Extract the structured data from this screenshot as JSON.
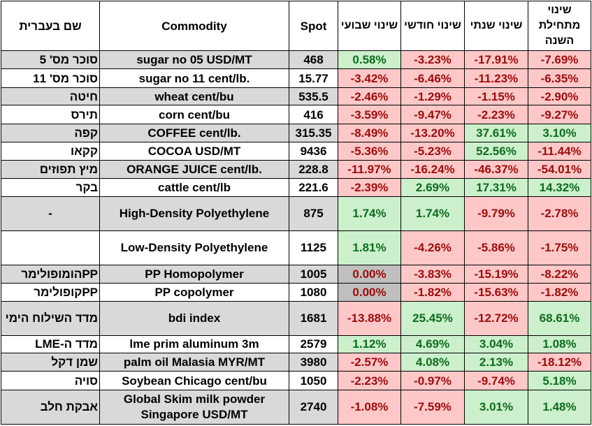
{
  "headers": {
    "hebrew_name": "שם בעברית",
    "commodity": "Commodity",
    "spot": "Spot",
    "weekly": "שינוי שבועי",
    "monthly": "שינוי חודשי",
    "yearly": "שינוי שנתי",
    "ytd": "שינוי מתחילת השנה"
  },
  "colors": {
    "positive_bg": "#ccf0cc",
    "positive_text": "#0d6b1f",
    "negative_bg": "#ffc8c8",
    "negative_text": "#9c0b0b",
    "neutral_bg": "#bfbfbf",
    "row_shade": "#d9d9d9"
  },
  "rows": [
    {
      "heb": "סוכר מס' 5",
      "name": "sugar no 05 USD/MT",
      "spot": "468",
      "weekly": "0.58%",
      "monthly": "-3.23%",
      "yearly": "-17.91%",
      "ytd": "-7.69%"
    },
    {
      "heb": "סוכר מס' 11",
      "name": "sugar no 11 cent/lb.",
      "spot": "15.77",
      "weekly": "-3.42%",
      "monthly": "-6.46%",
      "yearly": "-11.23%",
      "ytd": "-6.35%"
    },
    {
      "heb": "חיטה",
      "name": "wheat cent/bu",
      "spot": "535.5",
      "weekly": "-2.46%",
      "monthly": "-1.29%",
      "yearly": "-1.15%",
      "ytd": "-2.90%"
    },
    {
      "heb": "תירס",
      "name": "corn cent/bu",
      "spot": "416",
      "weekly": "-3.59%",
      "monthly": "-9.47%",
      "yearly": "-2.23%",
      "ytd": "-9.27%"
    },
    {
      "heb": "קפה",
      "name": "COFFEE cent/lb.",
      "spot": "315.35",
      "weekly": "-8.49%",
      "monthly": "-13.20%",
      "yearly": "37.61%",
      "ytd": "3.10%"
    },
    {
      "heb": "קקאו",
      "name": "COCOA USD/MT",
      "spot": "9436",
      "weekly": "-5.36%",
      "monthly": "-5.23%",
      "yearly": "52.56%",
      "ytd": "-11.44%"
    },
    {
      "heb": "מיץ תפוזים",
      "name": "ORANGE JUICE cent/lb.",
      "spot": "228.8",
      "weekly": "-11.97%",
      "monthly": "-16.24%",
      "yearly": "-46.37%",
      "ytd": "-54.01%"
    },
    {
      "heb": "בקר",
      "name": "cattle cent/lb",
      "spot": "221.6",
      "weekly": "-2.39%",
      "monthly": "2.69%",
      "yearly": "17.31%",
      "ytd": "14.32%"
    },
    {
      "heb": "-",
      "name": "High-Density Polyethylene",
      "spot": "875",
      "weekly": "1.74%",
      "monthly": "1.74%",
      "yearly": "-9.79%",
      "ytd": "-2.78%"
    },
    {
      "heb": "",
      "name": "Low-Density Polyethylene",
      "spot": "1125",
      "weekly": "1.81%",
      "monthly": "-4.26%",
      "yearly": "-5.86%",
      "ytd": "-1.75%"
    },
    {
      "heb": "PPהומופולימר",
      "name": "PP Homopolymer",
      "spot": "1005",
      "weekly": "0.00%",
      "monthly": "-3.83%",
      "yearly": "-15.19%",
      "ytd": "-8.22%"
    },
    {
      "heb": "PPקופולימר",
      "name": "PP copolymer",
      "spot": "1080",
      "weekly": "0.00%",
      "monthly": "-1.82%",
      "yearly": "-15.63%",
      "ytd": "-1.82%"
    },
    {
      "heb": "מדד השילוח הימי",
      "name": "bdi index",
      "spot": "1681",
      "weekly": "-13.88%",
      "monthly": "25.45%",
      "yearly": "-12.72%",
      "ytd": "68.61%"
    },
    {
      "heb": "מדד ה-LME",
      "name": "lme prim aluminum 3m",
      "spot": "2579",
      "weekly": "1.12%",
      "monthly": "4.69%",
      "yearly": "3.04%",
      "ytd": "1.08%"
    },
    {
      "heb": "שמן דקל",
      "name": "palm oil Malasia MYR/MT",
      "spot": "3980",
      "weekly": "-2.57%",
      "monthly": "4.08%",
      "yearly": "2.13%",
      "ytd": "-18.12%"
    },
    {
      "heb": "סויה",
      "name": "Soybean Chicago cent/bu",
      "spot": "1050",
      "weekly": "-2.23%",
      "monthly": "-0.97%",
      "yearly": "-9.74%",
      "ytd": "5.18%"
    },
    {
      "heb": "אבקת חלב",
      "name": "Global Skim milk powder Singapore USD/MT",
      "spot": "2740",
      "weekly": "-1.08%",
      "monthly": "-7.59%",
      "yearly": "3.01%",
      "ytd": "1.48%"
    }
  ]
}
